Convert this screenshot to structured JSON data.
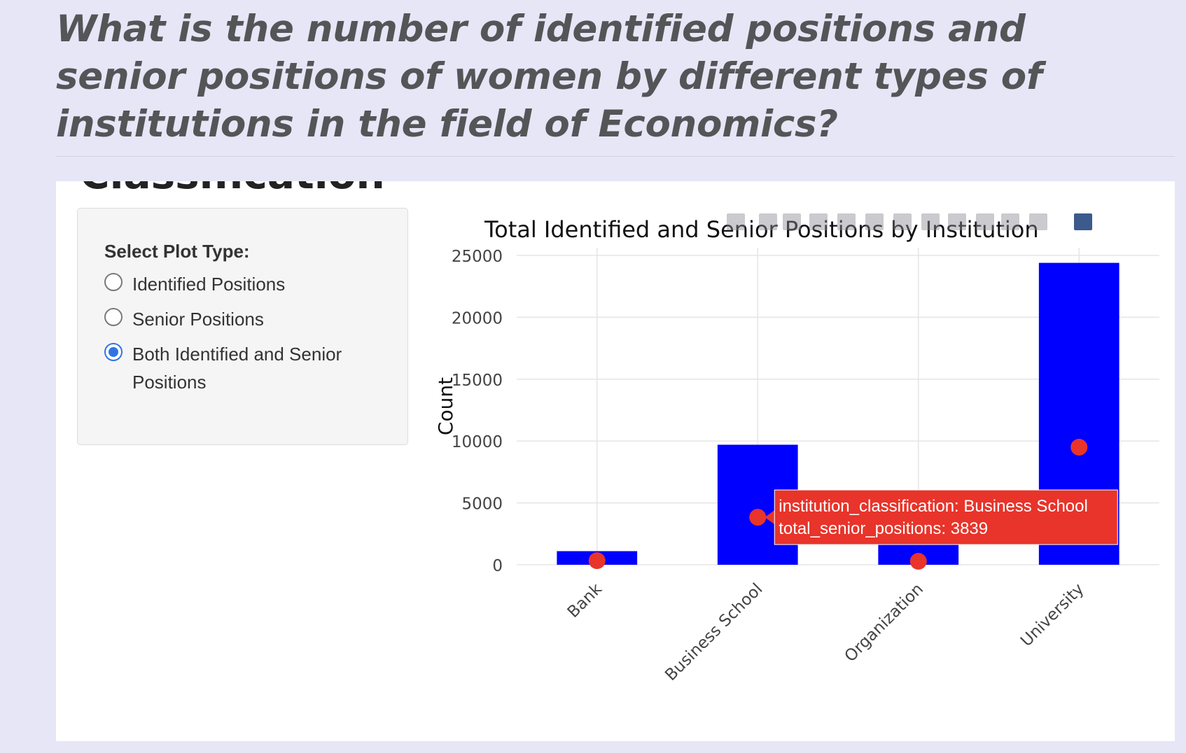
{
  "page": {
    "question": "What is the number of identified positions and senior positions of women by different types of institutions in the field of Economics?",
    "section_heading": "Classification"
  },
  "sidebar": {
    "label": "Select Plot Type:",
    "options": [
      {
        "label": "Identified Positions",
        "selected": false
      },
      {
        "label": "Senior Positions",
        "selected": false
      },
      {
        "label": "Both Identified and Senior Positions",
        "selected": true
      }
    ]
  },
  "colors": {
    "bar": "#0000ff",
    "marker": "#e8342a",
    "tooltip_bg": "#e8342a",
    "accent_radio": "#2f74e6"
  },
  "modebar_icons": [
    "camera-icon",
    "zoom-icon",
    "pan-icon",
    "box-select-icon",
    "lasso-icon",
    "zoom-in-icon",
    "zoom-out-icon",
    "autoscale-icon",
    "reset-axes-icon",
    "spike-lines-icon",
    "hover-closest-icon",
    "hover-compare-icon",
    "plotly-logo-icon"
  ],
  "chart_data": {
    "type": "bar",
    "title": "Total Identified and Senior Positions by Institution",
    "xlabel": "",
    "ylabel": "Count",
    "categories": [
      "Bank",
      "Business School",
      "Organization",
      "University"
    ],
    "ylim": [
      0,
      25000
    ],
    "yticks": [
      0,
      5000,
      10000,
      15000,
      20000,
      25000
    ],
    "ytick_labels": [
      "0",
      "5000",
      "10000",
      "15000",
      "20000",
      "25000"
    ],
    "grid": true,
    "legend": "none",
    "series": [
      {
        "kind": "bar",
        "values": [
          1100,
          9700,
          1950,
          24400
        ]
      },
      {
        "kind": "scatter",
        "values": [
          330,
          3839,
          280,
          9500
        ]
      }
    ],
    "tooltip": {
      "category_index": 1,
      "lines": [
        "institution_classification: Business School",
        "total_senior_positions: 3839"
      ]
    }
  }
}
